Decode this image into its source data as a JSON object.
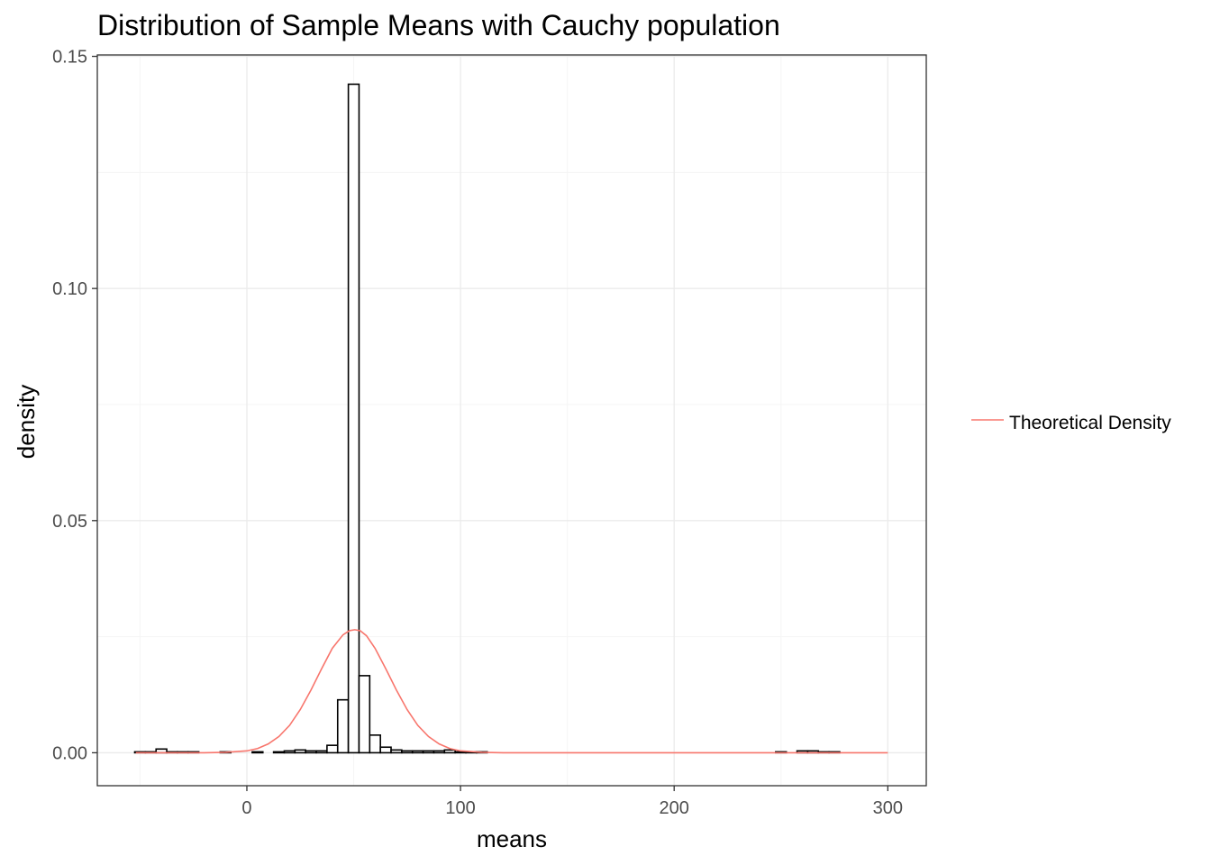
{
  "chart_data": {
    "type": "bar",
    "title": "Distribution of Sample Means with Cauchy population",
    "xlabel": "means",
    "ylabel": "density",
    "xlim": [
      -70,
      318
    ],
    "ylim": [
      -0.0071,
      0.1503
    ],
    "x_ticks": [
      0,
      100,
      200,
      300
    ],
    "x_tick_labels": [
      "0",
      "100",
      "200",
      "300"
    ],
    "y_ticks": [
      0.0,
      0.05,
      0.1,
      0.15
    ],
    "y_tick_labels": [
      "0.00",
      "0.05",
      "0.10",
      "0.15"
    ],
    "grid": true,
    "legend_position": "right",
    "histogram": {
      "bin_width": 5,
      "bins": [
        {
          "x0": -52.5,
          "x1": -47.5,
          "density": 0.0002
        },
        {
          "x0": -47.5,
          "x1": -42.5,
          "density": 0.0002
        },
        {
          "x0": -42.5,
          "x1": -37.5,
          "density": 0.0008
        },
        {
          "x0": -37.5,
          "x1": -32.5,
          "density": 0.0002
        },
        {
          "x0": -32.5,
          "x1": -27.5,
          "density": 0.0002
        },
        {
          "x0": -27.5,
          "x1": -22.5,
          "density": 0.0002
        },
        {
          "x0": -12.5,
          "x1": -7.5,
          "density": 0.0002
        },
        {
          "x0": 2.5,
          "x1": 7.5,
          "density": 0.0002
        },
        {
          "x0": 12.5,
          "x1": 17.5,
          "density": 0.0002
        },
        {
          "x0": 17.5,
          "x1": 22.5,
          "density": 0.0004
        },
        {
          "x0": 22.5,
          "x1": 27.5,
          "density": 0.0006
        },
        {
          "x0": 27.5,
          "x1": 32.5,
          "density": 0.0004
        },
        {
          "x0": 32.5,
          "x1": 37.5,
          "density": 0.0004
        },
        {
          "x0": 37.5,
          "x1": 42.5,
          "density": 0.0016
        },
        {
          "x0": 42.5,
          "x1": 47.5,
          "density": 0.0114
        },
        {
          "x0": 47.5,
          "x1": 52.5,
          "density": 0.144
        },
        {
          "x0": 52.5,
          "x1": 57.5,
          "density": 0.0166
        },
        {
          "x0": 57.5,
          "x1": 62.5,
          "density": 0.0038
        },
        {
          "x0": 62.5,
          "x1": 67.5,
          "density": 0.0012
        },
        {
          "x0": 67.5,
          "x1": 72.5,
          "density": 0.0006
        },
        {
          "x0": 72.5,
          "x1": 77.5,
          "density": 0.0004
        },
        {
          "x0": 77.5,
          "x1": 82.5,
          "density": 0.0004
        },
        {
          "x0": 82.5,
          "x1": 87.5,
          "density": 0.0004
        },
        {
          "x0": 87.5,
          "x1": 92.5,
          "density": 0.0004
        },
        {
          "x0": 92.5,
          "x1": 97.5,
          "density": 0.0006
        },
        {
          "x0": 97.5,
          "x1": 102.5,
          "density": 0.0002
        },
        {
          "x0": 102.5,
          "x1": 107.5,
          "density": 0.0002
        },
        {
          "x0": 107.5,
          "x1": 112.5,
          "density": 0.0002
        },
        {
          "x0": 247.5,
          "x1": 252.5,
          "density": 0.0002
        },
        {
          "x0": 257.5,
          "x1": 262.5,
          "density": 0.0004
        },
        {
          "x0": 262.5,
          "x1": 267.5,
          "density": 0.0004
        },
        {
          "x0": 267.5,
          "x1": 272.5,
          "density": 0.0002
        },
        {
          "x0": 272.5,
          "x1": 277.5,
          "density": 0.0002
        }
      ],
      "fill": "#ffffff",
      "stroke": "#000000"
    },
    "series": [
      {
        "name": "Theoretical Density",
        "type": "line",
        "color": "#F8766D",
        "x": [
          -52,
          -40,
          -30,
          -20,
          -10,
          0,
          5,
          10,
          15,
          20,
          25,
          30,
          35,
          40,
          45,
          48,
          50.5,
          53,
          56,
          60,
          65,
          70,
          75,
          80,
          85,
          90,
          95,
          100,
          110,
          120,
          150,
          200,
          250,
          300
        ],
        "y": [
          0.0,
          0.0,
          0.0,
          0.0,
          0.0001,
          0.0004,
          0.0009,
          0.0019,
          0.0035,
          0.0059,
          0.0093,
          0.0135,
          0.0181,
          0.0225,
          0.0254,
          0.0263,
          0.0265,
          0.0263,
          0.0252,
          0.0225,
          0.0181,
          0.0135,
          0.0093,
          0.0059,
          0.0035,
          0.0019,
          0.0009,
          0.0004,
          0.0001,
          0.0,
          0.0,
          0.0,
          0.0,
          0.0
        ]
      }
    ]
  },
  "colors": {
    "grid_major": "#ebebeb",
    "grid_minor": "#f5f5f5",
    "panel_border": "#333333",
    "tick_label": "#4d4d4d"
  }
}
